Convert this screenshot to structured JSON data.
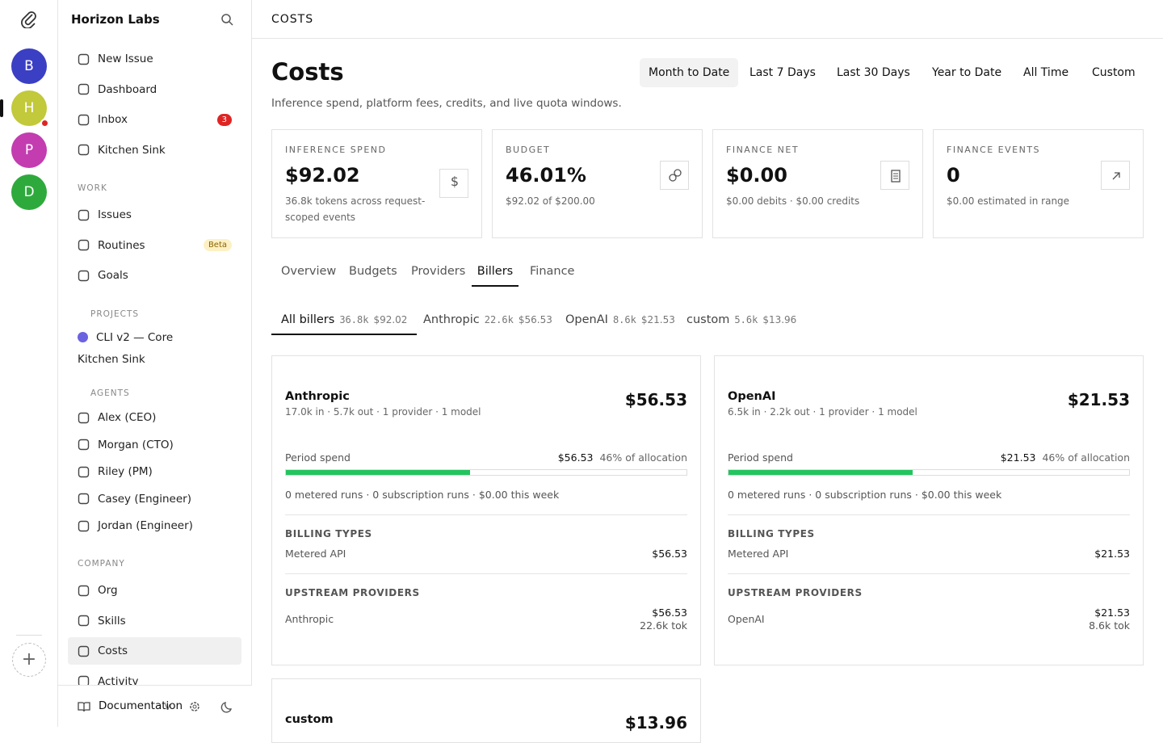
{
  "rail": {
    "avatars": [
      "B",
      "H",
      "P",
      "D"
    ]
  },
  "sidebar": {
    "company": "Horizon Labs",
    "nav": [
      {
        "label": "New Issue"
      },
      {
        "label": "Dashboard"
      },
      {
        "label": "Inbox",
        "badge": 3
      },
      {
        "label": "Kitchen Sink"
      }
    ],
    "sections": [
      {
        "title": "WORK",
        "items": [
          {
            "label": "Issues"
          },
          {
            "label": "Routines",
            "badge": "Beta"
          },
          {
            "label": "Goals"
          }
        ]
      },
      {
        "title": "PROJECTS",
        "items": [
          {
            "label": "CLI v2 — Core"
          },
          {
            "label": "Kitchen Sink"
          }
        ]
      },
      {
        "title": "AGENTS",
        "items": [
          {
            "label": "Alex (CEO)"
          },
          {
            "label": "Morgan (CTO)"
          },
          {
            "label": "Riley (PM)"
          },
          {
            "label": "Casey (Engineer)"
          },
          {
            "label": "Jordan (Engineer)"
          }
        ]
      },
      {
        "title": "COMPANY",
        "items": [
          {
            "label": "Org"
          },
          {
            "label": "Skills"
          },
          {
            "label": "Costs",
            "active": true
          },
          {
            "label": "Activity"
          }
        ]
      }
    ],
    "footer": {
      "label": "Documentation",
      "version": "v"
    }
  },
  "header": {
    "breadcrumb": "COSTS"
  },
  "page": {
    "title": "Costs",
    "subtitle": "Inference spend, platform fees, credits, and live quota windows.",
    "ranges": [
      "Month to Date",
      "Last 7 Days",
      "Last 30 Days",
      "Year to Date",
      "All Time",
      "Custom"
    ],
    "active_range": 0,
    "stats": [
      {
        "label": "INFERENCE SPEND",
        "value": "$92.02",
        "note": "36.8k tokens across request-scoped events"
      },
      {
        "label": "BUDGET",
        "value": "46.01%",
        "note": "$92.02 of $200.00"
      },
      {
        "label": "FINANCE NET",
        "value": "$0.00",
        "note": "$0.00 debits · $0.00 credits"
      },
      {
        "label": "FINANCE EVENTS",
        "value": "0",
        "note": "$0.00 estimated in range"
      }
    ],
    "tabs": [
      "Overview",
      "Budgets",
      "Providers",
      "Billers",
      "Finance"
    ],
    "active_tab": 3,
    "biller_tabs": [
      {
        "name": "All billers",
        "tokens": "36.8k",
        "amount": "$92.02"
      },
      {
        "name": "Anthropic",
        "tokens": "22.6k",
        "amount": "$56.53"
      },
      {
        "name": "OpenAI",
        "tokens": "8.6k",
        "amount": "$21.53"
      },
      {
        "name": "custom",
        "tokens": "5.6k",
        "amount": "$13.96"
      }
    ],
    "active_biller": 0,
    "cards": [
      {
        "name": "Anthropic",
        "meta": "17.0k in · 5.7k out · 1 provider · 1 model",
        "amount": "$56.53",
        "period_label": "Period spend",
        "period_amount": "$56.53",
        "allocation": {
          "value": 46,
          "label": "46% of allocation"
        },
        "runs": "0 metered runs · 0 subscription runs · $0.00 this week",
        "billing_title": "BILLING TYPES",
        "billing": [
          {
            "type": "Metered API",
            "amount": "$56.53"
          }
        ],
        "upstream_title": "UPSTREAM PROVIDERS",
        "upstream": [
          {
            "name": "Anthropic",
            "amount": "$56.53",
            "tokens": "22.6k tok"
          }
        ]
      },
      {
        "name": "OpenAI",
        "meta": "6.5k in · 2.2k out · 1 provider · 1 model",
        "amount": "$21.53",
        "period_label": "Period spend",
        "period_amount": "$21.53",
        "allocation": {
          "value": 46,
          "label": "46% of allocation"
        },
        "runs": "0 metered runs · 0 subscription runs · $0.00 this week",
        "billing_title": "BILLING TYPES",
        "billing": [
          {
            "type": "Metered API",
            "amount": "$21.53"
          }
        ],
        "upstream_title": "UPSTREAM PROVIDERS",
        "upstream": [
          {
            "name": "OpenAI",
            "amount": "$21.53",
            "tokens": "8.6k tok"
          }
        ]
      },
      {
        "name": "custom",
        "amount": "$13.96"
      }
    ]
  }
}
